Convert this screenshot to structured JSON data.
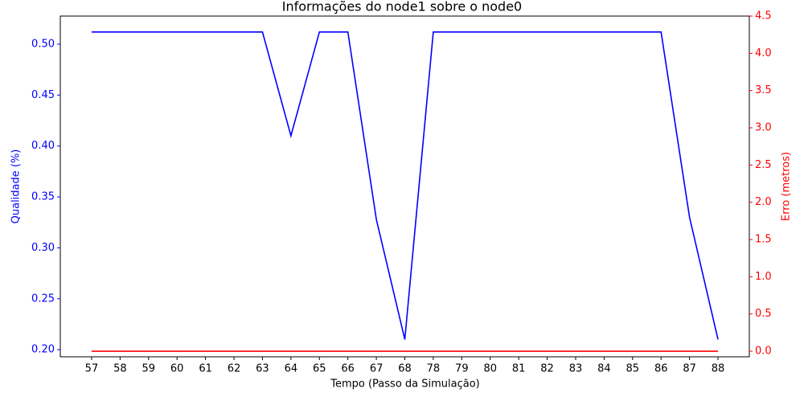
{
  "chart_data": {
    "type": "line",
    "title": "Informações do node1 sobre o node0",
    "x_label": "Tempo (Passo da Simulação)",
    "y_label": "Qualidade (%)",
    "y2_label": "Erro (metros)",
    "categories": [
      "57",
      "58",
      "59",
      "60",
      "61",
      "62",
      "63",
      "64",
      "65",
      "66",
      "67",
      "68",
      "78",
      "79",
      "80",
      "81",
      "82",
      "83",
      "84",
      "85",
      "86",
      "87",
      "88"
    ],
    "series": [
      {
        "color": "#0000ff",
        "axis": "y",
        "values": [
          0.512,
          0.512,
          0.512,
          0.512,
          0.512,
          0.512,
          0.512,
          0.41,
          0.512,
          0.512,
          0.328,
          0.21,
          0.512,
          0.512,
          0.512,
          0.512,
          0.512,
          0.512,
          0.512,
          0.512,
          0.512,
          0.33,
          0.21
        ]
      },
      {
        "color": "#ff0000",
        "axis": "y2",
        "values": [
          0,
          0,
          0,
          0,
          0,
          0,
          0,
          0,
          0,
          0,
          0,
          0,
          0,
          0,
          0,
          0,
          0,
          0,
          0,
          0,
          0,
          0,
          0
        ]
      }
    ],
    "ylim": [
      0.193,
      0.5276
    ],
    "yticks": [
      {
        "value": 0.2,
        "label": "0.20"
      },
      0.25,
      {
        "value": 0.3,
        "label": "0.30"
      },
      0.35,
      {
        "value": 0.4,
        "label": "0.40"
      },
      0.45,
      {
        "value": 0.5,
        "label": "0.50"
      }
    ],
    "y2lim": [
      -0.075,
      4.5
    ],
    "y2ticks": [
      {
        "value": 0,
        "label": "0.0"
      },
      {
        "value": 0.5,
        "label": "0.5"
      },
      {
        "value": 1,
        "label": "1.0"
      },
      {
        "value": 1.5,
        "label": "1.5"
      },
      {
        "value": 2,
        "label": "2.0"
      },
      {
        "value": 2.5,
        "label": "2.5"
      },
      {
        "value": 3,
        "label": "3.0"
      },
      {
        "value": 3.5,
        "label": "3.5"
      },
      {
        "value": 4,
        "label": "4.0"
      },
      {
        "value": 4.5,
        "label": "4.5"
      }
    ],
    "y_color": "#0000ff",
    "y2_color": "#ff0000"
  }
}
